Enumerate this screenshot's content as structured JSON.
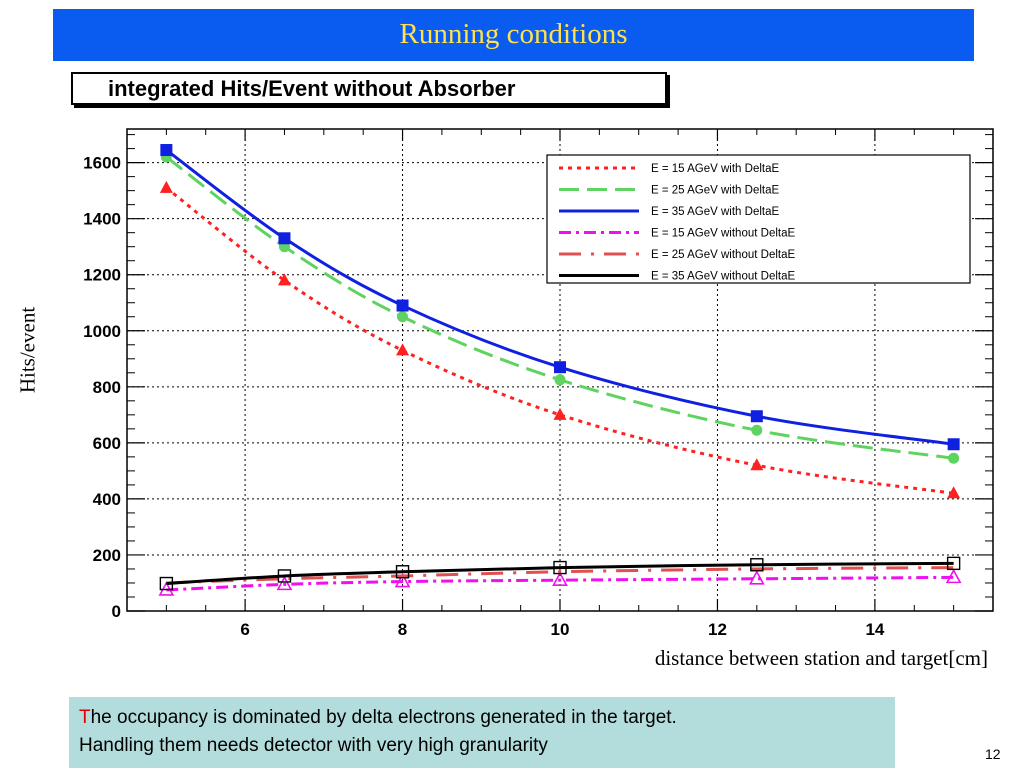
{
  "slide": {
    "title": "Running conditions",
    "page_number": "12",
    "note": {
      "first_letter": "T",
      "line1_rest": "he occupancy is dominated by delta electrons generated in the target.",
      "line2": "Handling them needs detector with very high granularity"
    },
    "colors": {
      "title_bar": "#0a5cf0",
      "title_text": "#ffe14d",
      "note_bg": "#b3dcdc",
      "note_accent": "#e00000"
    }
  },
  "chart_data": {
    "type": "line",
    "title": "integrated Hits/Event without Absorber",
    "xlabel": "distance between station and target[cm]",
    "ylabel": "Hits/event",
    "xlim": [
      4.5,
      15.5
    ],
    "ylim": [
      0,
      1720
    ],
    "xticks": [
      6,
      8,
      10,
      12,
      14
    ],
    "yticks": [
      0,
      200,
      400,
      600,
      800,
      1000,
      1200,
      1400,
      1600
    ],
    "grid": true,
    "legend_position": "top-right",
    "x": [
      5,
      6.5,
      8,
      10,
      12.5,
      15
    ],
    "series": [
      {
        "name": "E = 15 AGeV with DeltaE",
        "color": "#ff2020",
        "dash": "dotted",
        "marker": "triangle",
        "values": [
          1510,
          1180,
          930,
          700,
          520,
          420
        ]
      },
      {
        "name": "E = 25 AGeV with DeltaE",
        "color": "#5fd35f",
        "dash": "long",
        "marker": "circle",
        "values": [
          1620,
          1300,
          1050,
          825,
          645,
          545
        ]
      },
      {
        "name": "E = 35 AGeV with DeltaE",
        "color": "#1020e0",
        "dash": "solid",
        "marker": "square",
        "values": [
          1645,
          1330,
          1090,
          870,
          695,
          595
        ]
      },
      {
        "name": "E = 15 AGeV without DeltaE",
        "color": "#ee10ee",
        "dash": "dashdot",
        "marker": "open-triangle",
        "values": [
          75,
          95,
          105,
          110,
          115,
          120
        ]
      },
      {
        "name": "E = 25 AGeV without DeltaE",
        "color": "#e05050",
        "dash": "longdot",
        "marker": "none",
        "values": [
          100,
          115,
          125,
          140,
          150,
          155
        ]
      },
      {
        "name": "E = 35 AGeV without DeltaE",
        "color": "#000000",
        "dash": "solid",
        "marker": "open-square",
        "values": [
          98,
          125,
          140,
          155,
          165,
          170
        ]
      }
    ]
  }
}
